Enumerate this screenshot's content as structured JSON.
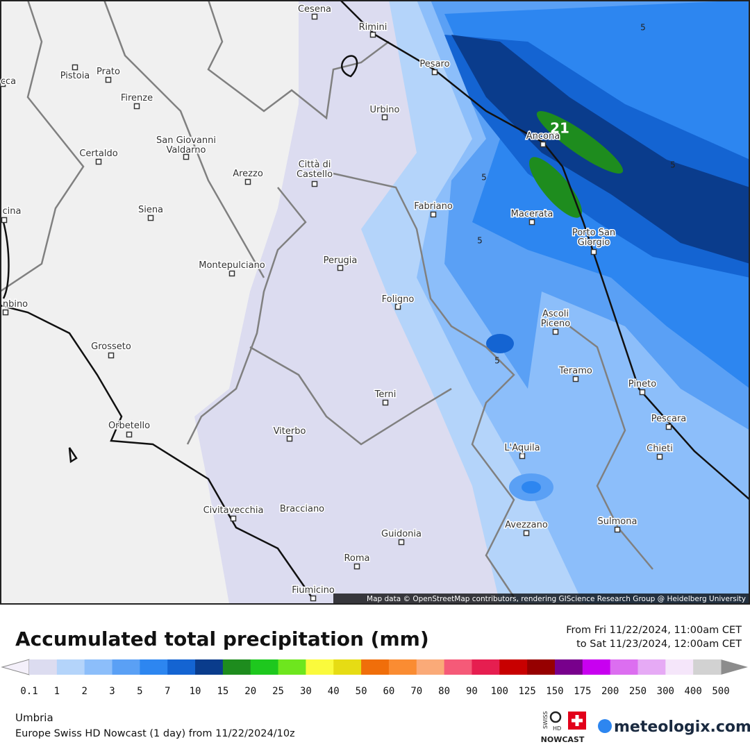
{
  "map": {
    "cities": [
      {
        "label": "Cesena"
      },
      {
        "label": "Rimini"
      },
      {
        "label": "Pistoia"
      },
      {
        "label": "Prato"
      },
      {
        "label": "Firenze"
      },
      {
        "label": "Pesaro"
      },
      {
        "label": "Urbino"
      },
      {
        "label": "Ancona"
      },
      {
        "label": [
          "San Giovanni",
          "Valdarno"
        ]
      },
      {
        "label": "Certaldo"
      },
      {
        "label": "Arezzo"
      },
      {
        "label": [
          "Città di",
          "Castello"
        ]
      },
      {
        "label": "Fabriano"
      },
      {
        "label": "Macerata"
      },
      {
        "label": [
          "Porto San",
          "Giorgio"
        ]
      },
      {
        "label": "Siena"
      },
      {
        "label": "Montepulciano"
      },
      {
        "label": "Perugia"
      },
      {
        "label": "Foligno"
      },
      {
        "label": [
          "Ascoli",
          "Piceno"
        ]
      },
      {
        "label": "Grosseto"
      },
      {
        "label": "Teramo"
      },
      {
        "label": "Pineto"
      },
      {
        "label": "Terni"
      },
      {
        "label": "Pescara"
      },
      {
        "label": "Orbetello"
      },
      {
        "label": "Viterbo"
      },
      {
        "label": "L'Aquila"
      },
      {
        "label": "Chieti"
      },
      {
        "label": "Civitavecchia"
      },
      {
        "label": "Bracciano"
      },
      {
        "label": "Guidonia"
      },
      {
        "label": "Avezzano"
      },
      {
        "label": "Sulmona"
      },
      {
        "label": "Roma"
      },
      {
        "label": "Fiumicino"
      },
      {
        "label": "cca"
      },
      {
        "label": "cina"
      },
      {
        "label": "nbino"
      }
    ],
    "contour_labels": [
      "5",
      "5",
      "5",
      "5",
      "5",
      "21"
    ],
    "attribution": "Map data © OpenStreetMap contributors, rendering GIScience Research Group @ Heidelberg University"
  },
  "legend": {
    "title": "Accumulated total precipitation (mm)",
    "period": [
      "From Fri 11/22/2024, 11:00am CET",
      "to Sat 11/23/2024, 12:00am CET"
    ],
    "ticks": [
      "0.1",
      "1",
      "2",
      "3",
      "5",
      "7",
      "10",
      "15",
      "20",
      "25",
      "30",
      "40",
      "50",
      "60",
      "70",
      "80",
      "90",
      "100",
      "125",
      "150",
      "175",
      "200",
      "250",
      "300",
      "400",
      "500"
    ],
    "colors": [
      "#dcdcf0",
      "#b4d4fa",
      "#8cbefa",
      "#5aa0f5",
      "#2d86f0",
      "#1464d2",
      "#0a3c8c",
      "#1e8c1e",
      "#1ec81e",
      "#6ee61e",
      "#fafa3c",
      "#e6dc14",
      "#f06e0a",
      "#fa8c32",
      "#faaa78",
      "#f55a78",
      "#e61e50",
      "#c80000",
      "#960000",
      "#78008c",
      "#c800f0",
      "#dc6ef0",
      "#e6aaf5",
      "#f5e6fa",
      "#d2d2d2"
    ]
  },
  "footer": {
    "region": "Umbria",
    "model": "Europe Swiss HD Nowcast (1 day) from 11/22/2024/10z",
    "logo": [
      "SWISS",
      "HD",
      "NOWCAST"
    ],
    "brand": "meteologix.com"
  }
}
